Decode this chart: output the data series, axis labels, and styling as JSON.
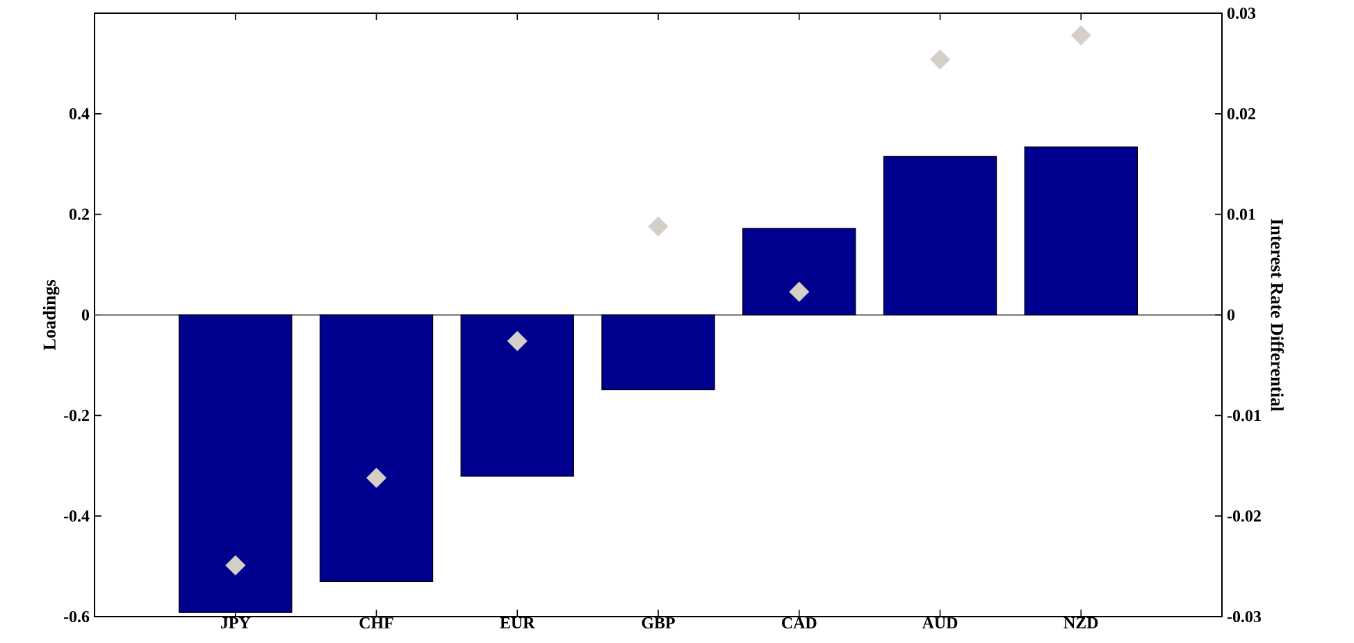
{
  "chart_data": {
    "type": "bar",
    "categories": [
      "JPY",
      "CHF",
      "EUR",
      "GBP",
      "CAD",
      "AUD",
      "NZD"
    ],
    "ylabel": "Loadings",
    "y2label": "Interest Rate Differential",
    "ylim": [
      -0.6,
      0.6
    ],
    "yticks": [
      -0.6,
      -0.4,
      -0.2,
      0,
      0.2,
      0.4
    ],
    "y2lim": [
      -0.03,
      0.03
    ],
    "y2ticks": [
      -0.03,
      -0.02,
      -0.01,
      0,
      0.01,
      0.02,
      0.03
    ],
    "series": [
      {
        "color": "#00008f",
        "values": [
          -0.592,
          -0.53,
          -0.321,
          -0.149,
          0.172,
          0.315,
          0.334
        ]
      },
      {
        "type": "scatter",
        "axis": "y2",
        "marker": "diamond",
        "color": "#d4d0c8",
        "values": [
          -0.0249,
          -0.0162,
          -0.0026,
          0.0088,
          0.0023,
          0.0254,
          0.0278
        ]
      }
    ],
    "ref_lines": [
      {
        "axis": "y",
        "value": 0,
        "color": "#808080"
      }
    ]
  }
}
